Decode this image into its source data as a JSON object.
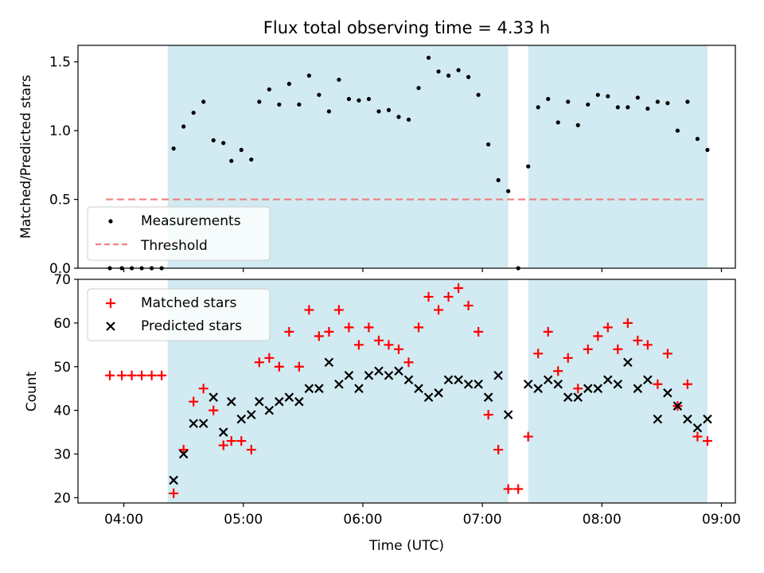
{
  "figure_title": "Flux total observing time = 4.33 h",
  "chart_data": [
    {
      "type": "scatter",
      "panel": "top",
      "title": "",
      "xlabel": "",
      "ylabel": "Matched/Predicted stars",
      "xlim": [
        "03:37",
        "09:07"
      ],
      "ylim": [
        0.0,
        1.62
      ],
      "yticks": [
        0.0,
        0.5,
        1.0,
        1.5
      ],
      "ytick_labels": [
        "0.0",
        "0.5",
        "1.0",
        "1.5"
      ],
      "xtick_labels": [],
      "grid": false,
      "legend": "lower-left",
      "shaded_intervals": [
        [
          "04:22",
          "07:13"
        ],
        [
          "07:23",
          "08:53"
        ]
      ],
      "shade_color": "#add8e6",
      "threshold": {
        "name": "Threshold",
        "y": 0.5,
        "x_range": [
          "03:51",
          "08:53"
        ],
        "color": "#f08080"
      },
      "series": [
        {
          "name": "Measurements",
          "marker": "dot",
          "color": "#000000",
          "x": [
            "03:53",
            "03:59",
            "04:04",
            "04:09",
            "04:14",
            "04:19",
            "04:25",
            "04:30",
            "04:35",
            "04:40",
            "04:45",
            "04:50",
            "04:54",
            "04:59",
            "05:04",
            "05:08",
            "05:13",
            "05:18",
            "05:23",
            "05:28",
            "05:33",
            "05:38",
            "05:43",
            "05:48",
            "05:53",
            "05:58",
            "06:03",
            "06:08",
            "06:13",
            "06:18",
            "06:23",
            "06:28",
            "06:33",
            "06:38",
            "06:43",
            "06:48",
            "06:53",
            "06:58",
            "07:03",
            "07:08",
            "07:13",
            "07:18",
            "07:23",
            "07:28",
            "07:33",
            "07:38",
            "07:43",
            "07:48",
            "07:53",
            "07:58",
            "08:03",
            "08:08",
            "08:13",
            "08:18",
            "08:23",
            "08:28",
            "08:33",
            "08:38",
            "08:43",
            "08:48",
            "08:53"
          ],
          "y": [
            0.0,
            0.0,
            0.0,
            0.0,
            0.0,
            0.0,
            0.87,
            1.03,
            1.13,
            1.21,
            0.93,
            0.91,
            0.78,
            0.86,
            0.79,
            1.21,
            1.3,
            1.19,
            1.34,
            1.19,
            1.4,
            1.26,
            1.14,
            1.37,
            1.23,
            1.22,
            1.23,
            1.14,
            1.15,
            1.1,
            1.08,
            1.31,
            1.53,
            1.43,
            1.4,
            1.44,
            1.39,
            1.26,
            0.9,
            0.64,
            0.56,
            0.0,
            0.74,
            1.17,
            1.23,
            1.06,
            1.21,
            1.04,
            1.19,
            1.26,
            1.25,
            1.17,
            1.17,
            1.24,
            1.16,
            1.21,
            1.2,
            1.0,
            1.21,
            0.94,
            0.86
          ]
        }
      ]
    },
    {
      "type": "scatter",
      "panel": "bottom",
      "title": "",
      "xlabel": "Time (UTC)",
      "ylabel": "Count",
      "xlim": [
        "03:37",
        "09:07"
      ],
      "ylim": [
        18.8,
        70
      ],
      "yticks": [
        20,
        30,
        40,
        50,
        60,
        70
      ],
      "ytick_labels": [
        "20",
        "30",
        "40",
        "50",
        "60",
        "70"
      ],
      "xticks": [
        "04:00",
        "05:00",
        "06:00",
        "07:00",
        "08:00",
        "09:00"
      ],
      "xtick_labels": [
        "04:00",
        "05:00",
        "06:00",
        "07:00",
        "08:00",
        "09:00"
      ],
      "grid": false,
      "legend": "upper-left",
      "shaded_intervals": [
        [
          "04:22",
          "07:13"
        ],
        [
          "07:23",
          "08:53"
        ]
      ],
      "shade_color": "#add8e6",
      "series": [
        {
          "name": "Matched stars",
          "marker": "plus",
          "color": "#ff0000",
          "x": [
            "03:53",
            "03:59",
            "04:04",
            "04:09",
            "04:14",
            "04:19",
            "04:25",
            "04:30",
            "04:35",
            "04:40",
            "04:45",
            "04:50",
            "04:54",
            "04:59",
            "05:04",
            "05:08",
            "05:13",
            "05:18",
            "05:23",
            "05:28",
            "05:33",
            "05:38",
            "05:43",
            "05:48",
            "05:53",
            "05:58",
            "06:03",
            "06:08",
            "06:13",
            "06:18",
            "06:23",
            "06:28",
            "06:33",
            "06:38",
            "06:43",
            "06:48",
            "06:53",
            "06:58",
            "07:03",
            "07:08",
            "07:13",
            "07:18",
            "07:23",
            "07:28",
            "07:33",
            "07:38",
            "07:43",
            "07:48",
            "07:53",
            "07:58",
            "08:03",
            "08:08",
            "08:13",
            "08:18",
            "08:23",
            "08:28",
            "08:33",
            "08:38",
            "08:43",
            "08:48",
            "08:53"
          ],
          "y": [
            48,
            48,
            48,
            48,
            48,
            48,
            21,
            31,
            42,
            45,
            40,
            32,
            33,
            33,
            31,
            51,
            52,
            50,
            58,
            50,
            63,
            57,
            58,
            63,
            59,
            55,
            59,
            56,
            55,
            54,
            51,
            59,
            66,
            63,
            66,
            68,
            64,
            58,
            39,
            31,
            22,
            22,
            34,
            53,
            58,
            49,
            52,
            45,
            54,
            57,
            59,
            54,
            60,
            56,
            55,
            46,
            53,
            41,
            46,
            34,
            33
          ]
        },
        {
          "name": "Predicted stars",
          "marker": "x",
          "color": "#000000",
          "x": [
            "04:25",
            "04:30",
            "04:35",
            "04:40",
            "04:45",
            "04:50",
            "04:54",
            "04:59",
            "05:04",
            "05:08",
            "05:13",
            "05:18",
            "05:23",
            "05:28",
            "05:33",
            "05:38",
            "05:43",
            "05:48",
            "05:53",
            "05:58",
            "06:03",
            "06:08",
            "06:13",
            "06:18",
            "06:23",
            "06:28",
            "06:33",
            "06:38",
            "06:43",
            "06:48",
            "06:53",
            "06:58",
            "07:03",
            "07:08",
            "07:13",
            "07:23",
            "07:28",
            "07:33",
            "07:38",
            "07:43",
            "07:48",
            "07:53",
            "07:58",
            "08:03",
            "08:08",
            "08:13",
            "08:18",
            "08:23",
            "08:28",
            "08:33",
            "08:38",
            "08:43",
            "08:48",
            "08:53"
          ],
          "y": [
            24,
            30,
            37,
            37,
            43,
            35,
            42,
            38,
            39,
            42,
            40,
            42,
            43,
            42,
            45,
            45,
            51,
            46,
            48,
            45,
            48,
            49,
            48,
            49,
            47,
            45,
            43,
            44,
            47,
            47,
            46,
            46,
            43,
            48,
            39,
            46,
            45,
            47,
            46,
            43,
            43,
            45,
            45,
            47,
            46,
            51,
            45,
            47,
            38,
            44,
            41,
            38,
            36,
            38
          ]
        }
      ]
    }
  ]
}
